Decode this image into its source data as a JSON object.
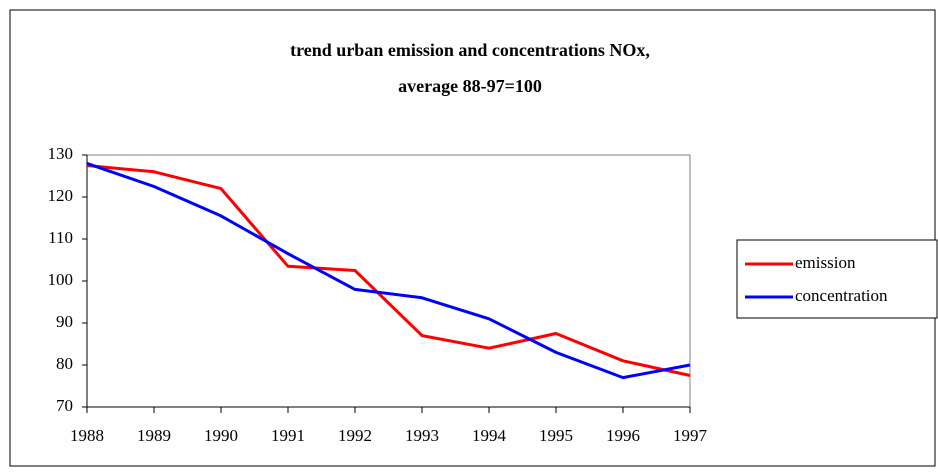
{
  "chart_data": {
    "type": "line",
    "title": [
      "trend urban emission and concentrations   NOx,",
      "average 88-97=100"
    ],
    "categories": [
      "1988",
      "1989",
      "1990",
      "1991",
      "1992",
      "1993",
      "1994",
      "1995",
      "1996",
      "1997"
    ],
    "series": [
      {
        "name": "emission",
        "color": "#ff0000",
        "values": [
          127.5,
          126,
          122,
          103.5,
          102.5,
          87,
          84,
          87.5,
          81,
          77.5
        ]
      },
      {
        "name": "concentration",
        "color": "#0000ff",
        "values": [
          128,
          122.5,
          115.5,
          106.5,
          98,
          96,
          91,
          83,
          77,
          80
        ]
      }
    ],
    "ylim": [
      70,
      130
    ],
    "yticks": [
      70,
      80,
      90,
      100,
      110,
      120,
      130
    ],
    "legend": "right"
  }
}
